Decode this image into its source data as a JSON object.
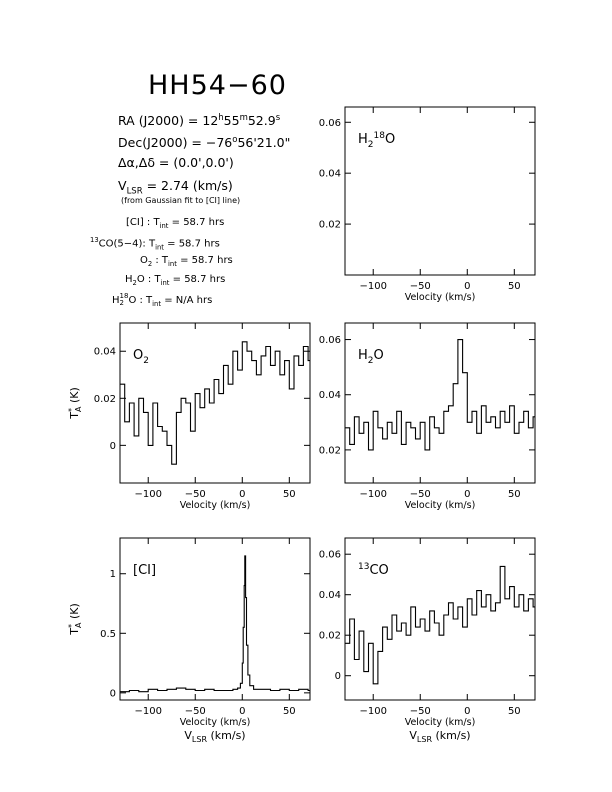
{
  "title": "HH54−60",
  "info": {
    "ra_label": "RA (J2000) =  12",
    "ra_h": "h",
    "ra_mid": "55",
    "ra_m": "m",
    "ra_end": "52.9",
    "ra_s": "s",
    "dec_label": "Dec(J2000) = −76",
    "dec_deg": "o",
    "dec_end": "56'21.0\"",
    "offset": "Δα,Δδ = (0.0',0.0')",
    "vlsr_v": "V",
    "vlsr_sub": "LSR",
    "vlsr_val": "  = 2.74  (km/s)",
    "vlsr_note": "(from Gaussian fit to [CI] line)",
    "int_times": [
      {
        "pre": "",
        "sup": "",
        "sub": "",
        "name": "[CI] : T",
        "tsub": "int",
        "val": " = 58.7 hrs"
      },
      {
        "pre": "",
        "sup": "13",
        "sub": "",
        "name": "CO(5−4): T",
        "tsub": "int",
        "val": " = 58.7 hrs"
      },
      {
        "pre": "O",
        "sup": "",
        "sub": "2",
        "name": " : T",
        "tsub": "int",
        "val": " = 58.7 hrs"
      },
      {
        "pre": "H",
        "sup": "",
        "sub": "2",
        "name": "O : T",
        "tsub": "int",
        "val": " = 58.7 hrs"
      },
      {
        "pre": "H",
        "sup": "18",
        "sub": "2",
        "name": "O : T",
        "tsub": "int",
        "val": " = N/A  hrs"
      }
    ]
  },
  "chart_data": [
    {
      "type": "line",
      "panel": "H2-18O",
      "label_parts": [
        "H",
        "2",
        "18",
        "O"
      ],
      "xlim": [
        -130,
        72
      ],
      "ylim": [
        0.0,
        0.066
      ],
      "xticks": [
        -100,
        -50,
        0,
        50
      ],
      "xtick_labels": [
        "−100",
        "−50",
        "0",
        "50"
      ],
      "yticks": [
        0.02,
        0.04,
        0.06
      ],
      "ytick_labels": [
        "0.02",
        "0.04",
        "0.06"
      ],
      "xlabel": "Velocity (km/s)",
      "ylabel": "",
      "series": []
    },
    {
      "type": "line",
      "panel": "O2",
      "label_parts": [
        "O",
        "2"
      ],
      "xlim": [
        -130,
        72
      ],
      "ylim": [
        -0.016,
        0.052
      ],
      "xticks": [
        -100,
        -50,
        0,
        50
      ],
      "xtick_labels": [
        "−100",
        "−50",
        "0",
        "50"
      ],
      "yticks": [
        0,
        0.02,
        0.04
      ],
      "ytick_labels": [
        "0",
        "0.02",
        "0.04"
      ],
      "xlabel": "Velocity (km/s)",
      "ylabel": "T*A (K)",
      "series": [
        {
          "x": [
            -130,
            -125,
            -120,
            -115,
            -110,
            -105,
            -100,
            -95,
            -90,
            -85,
            -80,
            -75,
            -70,
            -65,
            -60,
            -55,
            -50,
            -45,
            -40,
            -35,
            -30,
            -25,
            -20,
            -15,
            -10,
            -5,
            0,
            5,
            10,
            15,
            20,
            25,
            30,
            35,
            40,
            45,
            50,
            55,
            60,
            65,
            70
          ],
          "y": [
            0.026,
            0.01,
            0.018,
            0.004,
            0.02,
            0.014,
            0.0,
            0.018,
            0.008,
            0.006,
            0.0,
            -0.008,
            0.014,
            0.02,
            0.018,
            0.006,
            0.022,
            0.016,
            0.024,
            0.018,
            0.028,
            0.022,
            0.034,
            0.026,
            0.04,
            0.032,
            0.044,
            0.04,
            0.036,
            0.03,
            0.038,
            0.042,
            0.034,
            0.04,
            0.03,
            0.036,
            0.024,
            0.038,
            0.034,
            0.042,
            0.036
          ]
        }
      ]
    },
    {
      "type": "line",
      "panel": "H2O",
      "label_parts": [
        "H",
        "2",
        "",
        "O"
      ],
      "xlim": [
        -130,
        72
      ],
      "ylim": [
        0.008,
        0.066
      ],
      "xticks": [
        -100,
        -50,
        0,
        50
      ],
      "xtick_labels": [
        "−100",
        "−50",
        "0",
        "50"
      ],
      "yticks": [
        0.02,
        0.04,
        0.06
      ],
      "ytick_labels": [
        "0.02",
        "0.04",
        "0.06"
      ],
      "xlabel": "Velocity (km/s)",
      "ylabel": "",
      "series": [
        {
          "x": [
            -130,
            -125,
            -120,
            -115,
            -110,
            -105,
            -100,
            -95,
            -90,
            -85,
            -80,
            -75,
            -70,
            -65,
            -60,
            -55,
            -50,
            -45,
            -40,
            -35,
            -30,
            -25,
            -20,
            -15,
            -10,
            -5,
            0,
            5,
            10,
            15,
            20,
            25,
            30,
            35,
            40,
            45,
            50,
            55,
            60,
            65,
            70
          ],
          "y": [
            0.028,
            0.022,
            0.032,
            0.026,
            0.03,
            0.02,
            0.034,
            0.028,
            0.024,
            0.03,
            0.026,
            0.034,
            0.022,
            0.03,
            0.028,
            0.024,
            0.03,
            0.02,
            0.032,
            0.028,
            0.026,
            0.034,
            0.036,
            0.044,
            0.06,
            0.048,
            0.03,
            0.034,
            0.026,
            0.036,
            0.03,
            0.032,
            0.028,
            0.034,
            0.03,
            0.036,
            0.026,
            0.03,
            0.034,
            0.028,
            0.032
          ]
        }
      ]
    },
    {
      "type": "line",
      "panel": "CI",
      "label_parts": [
        "[CI]"
      ],
      "xlim": [
        -130,
        72
      ],
      "ylim": [
        -0.06,
        1.3
      ],
      "xticks": [
        -100,
        -50,
        0,
        50
      ],
      "xtick_labels": [
        "−100",
        "−50",
        "0",
        "50"
      ],
      "yticks": [
        0,
        0.5,
        1
      ],
      "ytick_labels": [
        "0",
        "0.5",
        "1"
      ],
      "xlabel": "Velocity (km/s)",
      "x2label_main": "V",
      "x2label_sub": "LSR",
      "x2label_unit": " (km/s)",
      "ylabel": "T*A (K)",
      "series": [
        {
          "x": [
            -130,
            -120,
            -110,
            -100,
            -90,
            -80,
            -70,
            -60,
            -50,
            -40,
            -30,
            -20,
            -10,
            -5,
            -2,
            0,
            1,
            2,
            2.7,
            3.5,
            4.5,
            6,
            8,
            12,
            20,
            30,
            40,
            50,
            60,
            70
          ],
          "y": [
            0.01,
            0.02,
            0.01,
            0.03,
            0.02,
            0.03,
            0.04,
            0.03,
            0.02,
            0.03,
            0.02,
            0.02,
            0.03,
            0.04,
            0.08,
            0.25,
            0.55,
            0.9,
            1.15,
            0.8,
            0.4,
            0.15,
            0.06,
            0.03,
            0.03,
            0.02,
            0.03,
            0.02,
            0.03,
            0.02
          ]
        }
      ]
    },
    {
      "type": "line",
      "panel": "13CO",
      "label_parts": [
        "13",
        "CO"
      ],
      "xlim": [
        -130,
        72
      ],
      "ylim": [
        -0.012,
        0.068
      ],
      "xticks": [
        -100,
        -50,
        0,
        50
      ],
      "xtick_labels": [
        "−100",
        "−50",
        "0",
        "50"
      ],
      "yticks": [
        0,
        0.02,
        0.04,
        0.06
      ],
      "ytick_labels": [
        "0",
        "0.02",
        "0.04",
        "0.06"
      ],
      "xlabel": "Velocity (km/s)",
      "x2label_main": "V",
      "x2label_sub": "LSR",
      "x2label_unit": " (km/s)",
      "ylabel": "",
      "series": [
        {
          "x": [
            -130,
            -125,
            -120,
            -115,
            -110,
            -105,
            -100,
            -95,
            -90,
            -85,
            -80,
            -75,
            -70,
            -65,
            -60,
            -55,
            -50,
            -45,
            -40,
            -35,
            -30,
            -25,
            -20,
            -15,
            -10,
            -5,
            0,
            5,
            10,
            15,
            20,
            25,
            30,
            35,
            40,
            45,
            50,
            55,
            60,
            65,
            70
          ],
          "y": [
            0.016,
            0.028,
            0.008,
            0.022,
            0.002,
            0.016,
            -0.004,
            0.012,
            0.024,
            0.018,
            0.03,
            0.022,
            0.026,
            0.02,
            0.034,
            0.024,
            0.028,
            0.022,
            0.032,
            0.026,
            0.02,
            0.03,
            0.036,
            0.028,
            0.034,
            0.024,
            0.038,
            0.03,
            0.042,
            0.034,
            0.04,
            0.032,
            0.036,
            0.054,
            0.038,
            0.044,
            0.034,
            0.04,
            0.032,
            0.038,
            0.034
          ]
        }
      ]
    }
  ]
}
